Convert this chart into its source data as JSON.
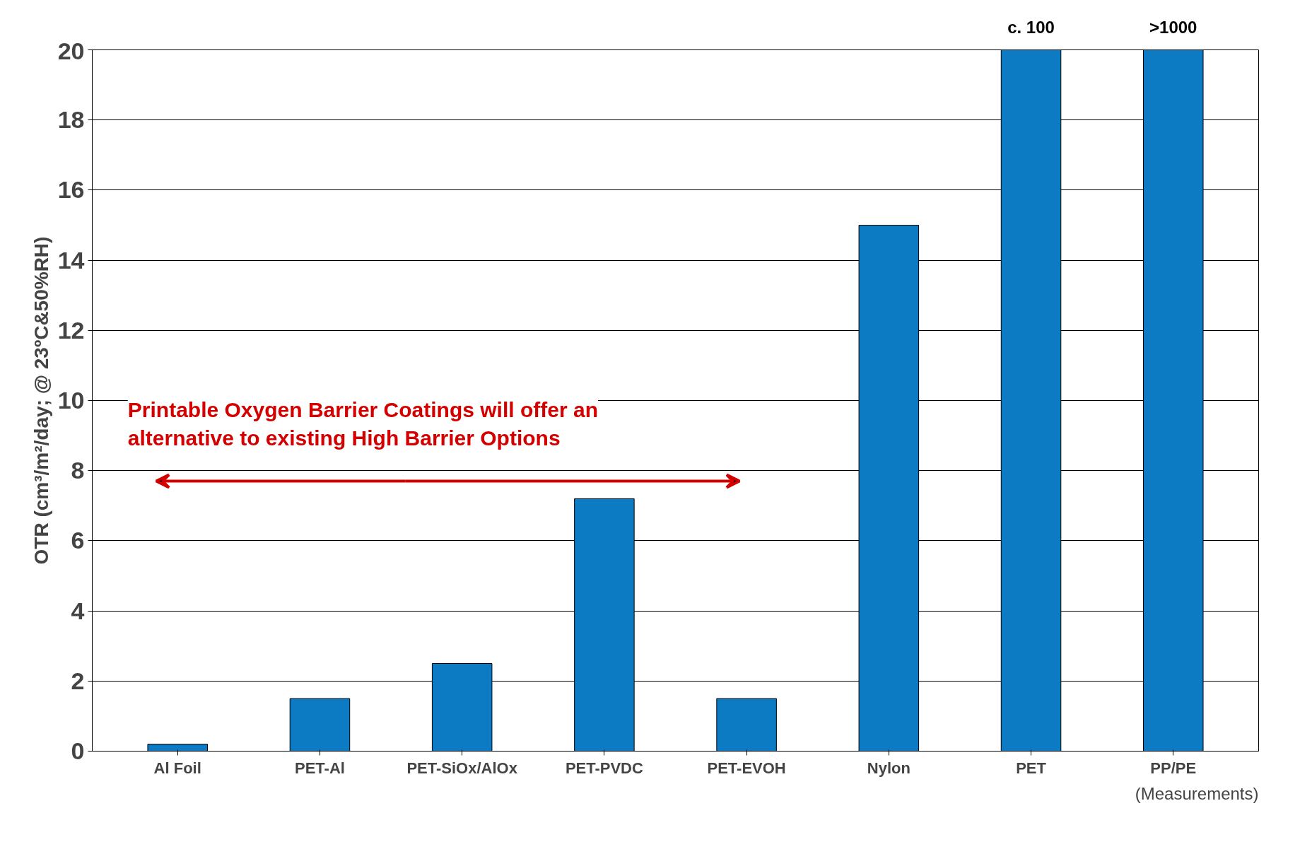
{
  "chart_data": {
    "type": "bar",
    "ylabel": "OTR (cm³/m²/day; @ 23ºC&50%RH)",
    "categories": [
      "Al Foil",
      "PET-Al",
      "PET-SiOx/AlOx",
      "PET-PVDC",
      "PET-EVOH",
      "Nylon",
      "PET",
      "PP/PE"
    ],
    "values": [
      0.2,
      1.5,
      2.5,
      7.2,
      1.5,
      15,
      20,
      20
    ],
    "color": "#0c7bc4",
    "ylim": [
      0,
      20
    ],
    "yticks": [
      0,
      2,
      4,
      6,
      8,
      10,
      12,
      14,
      16,
      18,
      20
    ],
    "grid": "y",
    "annotations": [
      "Printable Oxygen Barrier Coatings will offer an alternative to existing High Barrier Options",
      "(Measurements)",
      {
        "text": "c. 100",
        "x": "PET",
        "y": 20
      },
      {
        "text": ">1000",
        "x": "PP/PE",
        "y": 20
      }
    ]
  }
}
